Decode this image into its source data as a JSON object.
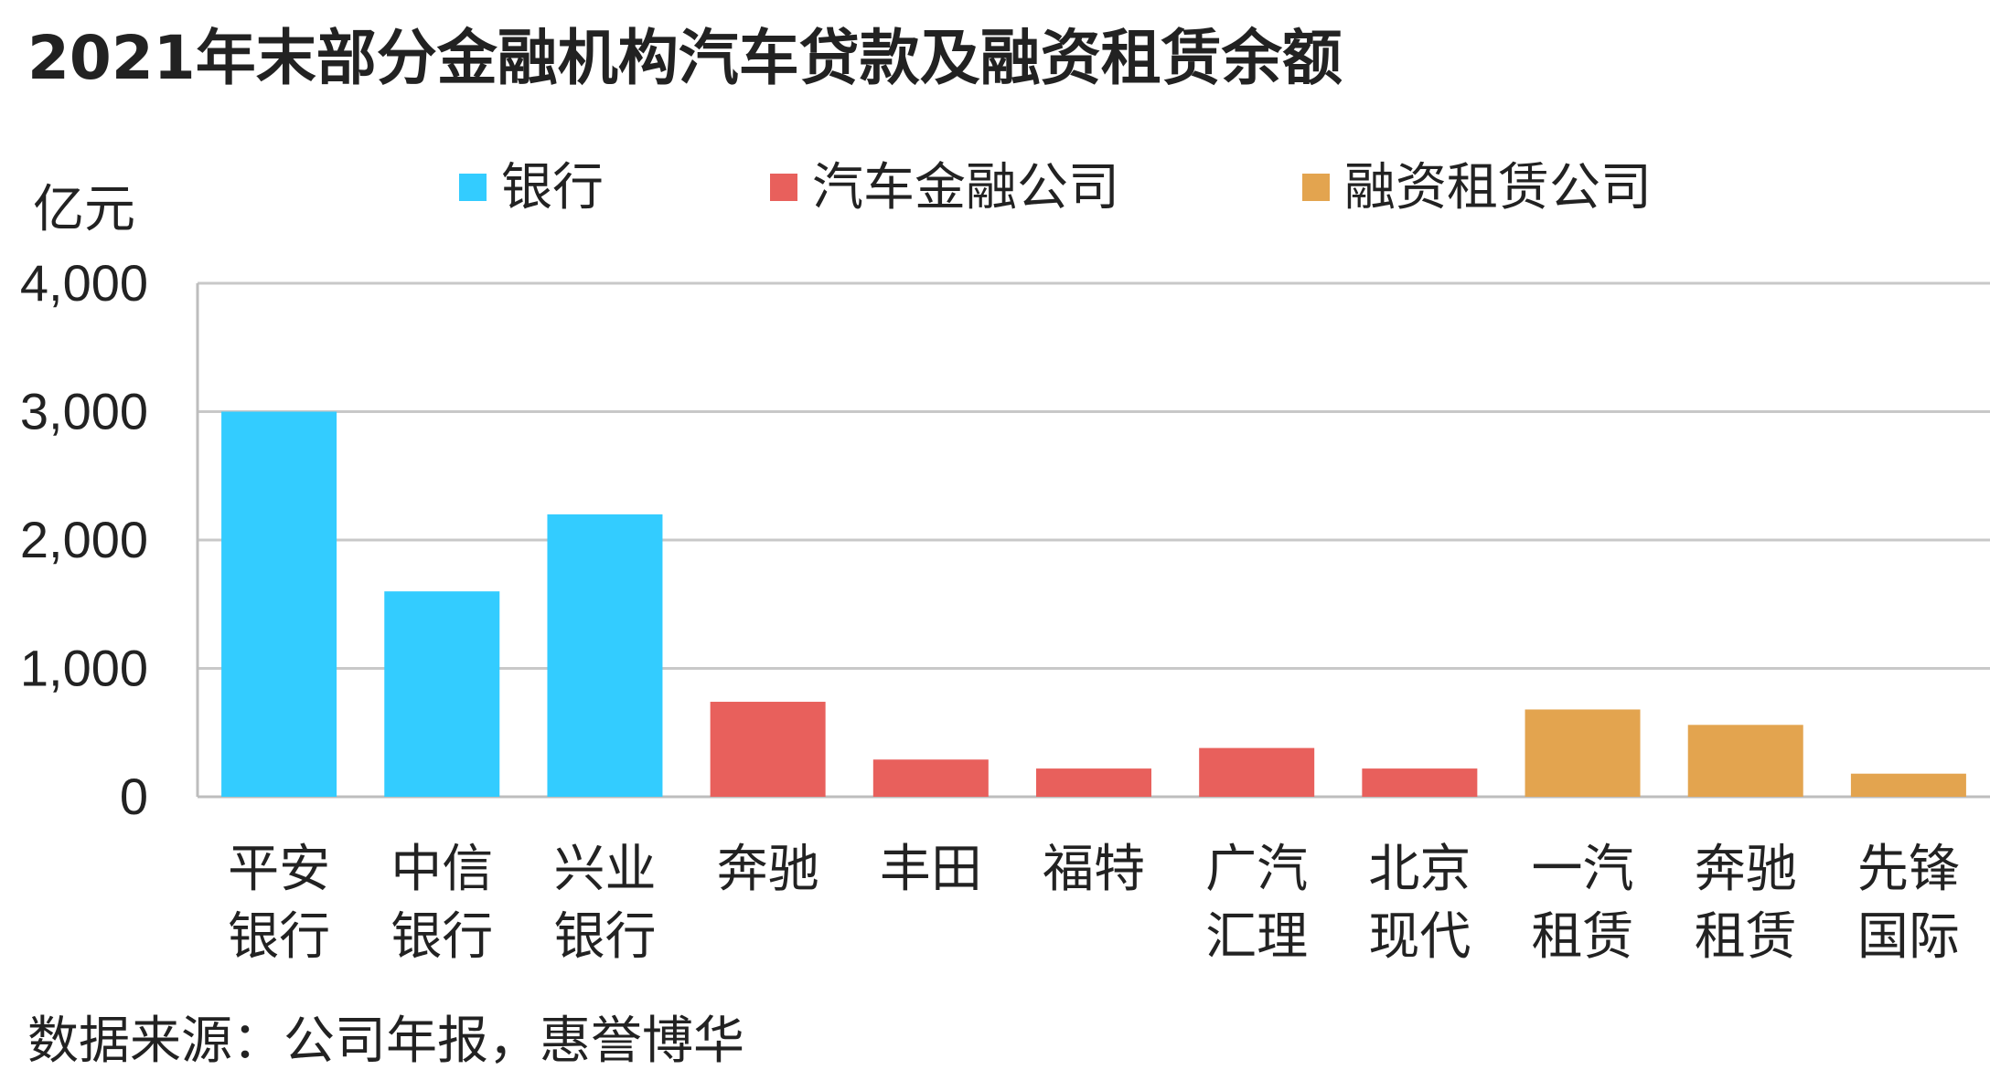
{
  "chart_data": {
    "type": "bar",
    "title": "2021年末部分金融机构汽车贷款及融资租赁余额",
    "unit_label": "亿元",
    "source": "数据来源：公司年报，惠誉博华",
    "ylim": [
      0,
      4000
    ],
    "y_ticks": [
      0,
      1000,
      2000,
      3000,
      4000
    ],
    "y_tick_labels": [
      "0",
      "1,000",
      "2,000",
      "3,000",
      "4,000"
    ],
    "grid": true,
    "legend_position": "top",
    "groups": [
      {
        "name": "银行",
        "color": "#33CCFF"
      },
      {
        "name": "汽车金融公司",
        "color": "#E8605C"
      },
      {
        "name": "融资租赁公司",
        "color": "#E3A44F"
      }
    ],
    "categories": [
      [
        "平安",
        "银行"
      ],
      [
        "中信",
        "银行"
      ],
      [
        "兴业",
        "银行"
      ],
      [
        "奔驰"
      ],
      [
        "丰田"
      ],
      [
        "福特"
      ],
      [
        "广汽",
        "汇理"
      ],
      [
        "北京",
        "现代"
      ],
      [
        "一汽",
        "租赁"
      ],
      [
        "奔驰",
        "租赁"
      ],
      [
        "先锋",
        "国际"
      ]
    ],
    "values": [
      3000,
      1600,
      2200,
      740,
      290,
      220,
      380,
      220,
      680,
      560,
      180
    ],
    "category_group": [
      0,
      0,
      0,
      1,
      1,
      1,
      1,
      1,
      2,
      2,
      2
    ]
  }
}
